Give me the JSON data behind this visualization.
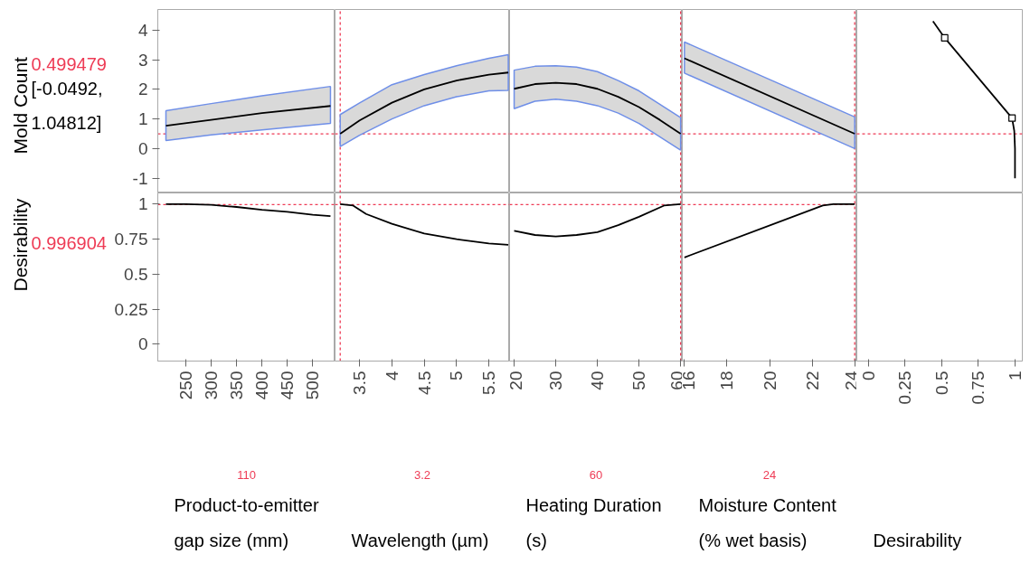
{
  "chart_data": [
    {
      "type": "line",
      "ylabel": "Mold Count",
      "annotations": [
        "[-0.0492, 1.04812]"
      ],
      "xlim": [
        195,
        544
      ],
      "xticks": [
        250,
        300,
        350,
        400,
        450,
        500
      ],
      "ylim": [
        -1.5,
        4.7
      ],
      "yticks": [
        -1,
        0,
        1,
        2,
        3,
        4
      ],
      "tick_labels": "y",
      "series": [
        {
          "color": "#000000",
          "x": [
            211,
            300,
            400,
            535
          ],
          "values": [
            0.77,
            0.97,
            1.2,
            1.44
          ],
          "lower": [
            0.27,
            0.46,
            0.63,
            0.85
          ],
          "upper": [
            1.28,
            1.52,
            1.78,
            2.1
          ]
        }
      ],
      "ref_lines": [
        {
          "axis": "y",
          "value": 0.499479,
          "label": "0.499479",
          "color": "#ee3b55"
        }
      ]
    },
    {
      "type": "line",
      "xlim": [
        3.12,
        5.82
      ],
      "xticks": [
        3.5,
        4,
        4.5,
        5,
        5.5
      ],
      "ylim": [
        -1.5,
        4.7
      ],
      "yticks": [
        -1,
        0,
        1,
        2,
        3,
        4
      ],
      "tick_labels": false,
      "series": [
        {
          "color": "#000000",
          "x": [
            3.2,
            3.5,
            4,
            4.5,
            5,
            5.5,
            5.8
          ],
          "values": [
            0.5,
            0.95,
            1.55,
            2.0,
            2.3,
            2.5,
            2.57
          ],
          "lower": [
            0.07,
            0.45,
            1.0,
            1.45,
            1.75,
            1.95,
            1.97
          ],
          "upper": [
            1.15,
            1.54,
            2.16,
            2.5,
            2.8,
            3.05,
            3.17
          ]
        }
      ],
      "ref_lines": [
        {
          "axis": "y",
          "value": 0.499479,
          "color": "#ee3b55"
        },
        {
          "axis": "x",
          "value": 3.2,
          "color": "#ee3b55"
        }
      ]
    },
    {
      "type": "line",
      "xlim": [
        18.9,
        60.4
      ],
      "xticks": [
        20,
        30,
        40,
        50,
        60
      ],
      "ylim": [
        -1.5,
        4.7
      ],
      "yticks": [
        -1,
        0,
        1,
        2,
        3,
        4
      ],
      "tick_labels": false,
      "series": [
        {
          "color": "#000000",
          "x": [
            20,
            25,
            30,
            35,
            40,
            45,
            50,
            55,
            60
          ],
          "values": [
            2.02,
            2.18,
            2.22,
            2.18,
            2.02,
            1.75,
            1.4,
            0.97,
            0.5
          ],
          "lower": [
            1.35,
            1.6,
            1.67,
            1.6,
            1.45,
            1.2,
            0.85,
            0.4,
            -0.05
          ],
          "upper": [
            2.65,
            2.78,
            2.8,
            2.75,
            2.6,
            2.3,
            1.95,
            1.5,
            1.05
          ]
        }
      ],
      "ref_lines": [
        {
          "axis": "y",
          "value": 0.499479,
          "color": "#ee3b55"
        },
        {
          "axis": "x",
          "value": 60,
          "color": "#ee3b55"
        }
      ]
    },
    {
      "type": "line",
      "xlim": [
        15.9,
        24.1
      ],
      "xticks": [
        16,
        18,
        20,
        22,
        24
      ],
      "ylim": [
        -1.5,
        4.7
      ],
      "yticks": [
        -1,
        0,
        1,
        2,
        3,
        4
      ],
      "tick_labels": false,
      "series": [
        {
          "color": "#000000",
          "x": [
            16,
            24
          ],
          "values": [
            3.05,
            0.5
          ],
          "lower": [
            2.55,
            0.0
          ],
          "upper": [
            3.6,
            1.07
          ]
        }
      ],
      "ref_lines": [
        {
          "axis": "y",
          "value": 0.499479,
          "color": "#ee3b55"
        },
        {
          "axis": "x",
          "value": 24,
          "color": "#ee3b55"
        }
      ]
    },
    {
      "type": "line",
      "xlim": [
        -0.08,
        1.05
      ],
      "xticks": [
        0,
        0.25,
        0.5,
        0.75,
        1
      ],
      "ylim": [
        -1.5,
        4.7
      ],
      "yticks": [
        -1,
        0,
        1,
        2,
        3,
        4
      ],
      "tick_labels": false,
      "series": [
        {
          "color": "#000000",
          "x": [
            0.44,
            0.52,
            0.98,
            0.995,
            1.0,
            1.0
          ],
          "values": [
            4.3,
            3.74,
            1.03,
            0.6,
            0.0,
            -1.0
          ]
        },
        {
          "type": "scatter",
          "marker": "square",
          "color": "#000000",
          "x": [
            0.52,
            0.98
          ],
          "values": [
            3.74,
            1.03
          ]
        }
      ],
      "ref_lines": [
        {
          "axis": "y",
          "value": 0.499479,
          "color": "#ee3b55"
        }
      ]
    },
    {
      "type": "line",
      "ylabel": "Desirability",
      "xlabel": "Product-to-emitter gap size (mm)",
      "annotations": [
        "110"
      ],
      "xlim": [
        195,
        544
      ],
      "xticks": [
        250,
        300,
        350,
        400,
        450,
        500
      ],
      "ylim": [
        -0.12,
        1.08
      ],
      "yticks": [
        0,
        0.25,
        0.5,
        0.75,
        1
      ],
      "series": [
        {
          "color": "#000000",
          "x": [
            211,
            250,
            300,
            350,
            400,
            450,
            500,
            535
          ],
          "values": [
            1.0,
            1.0,
            0.995,
            0.98,
            0.96,
            0.945,
            0.925,
            0.915
          ]
        }
      ],
      "ref_lines": [
        {
          "axis": "y",
          "value": 0.996904,
          "label": "0.996904",
          "color": "#ee3b55"
        }
      ]
    },
    {
      "type": "line",
      "xlabel": "Wavelength (µm)",
      "xlim": [
        3.12,
        5.82
      ],
      "xticks": [
        3.5,
        4,
        4.5,
        5,
        5.5
      ],
      "ylim": [
        -0.12,
        1.08
      ],
      "yticks": [
        0,
        0.25,
        0.5,
        0.75,
        1
      ],
      "tick_labels": "x",
      "series": [
        {
          "color": "#000000",
          "x": [
            3.2,
            3.4,
            3.6,
            4,
            4.5,
            5,
            5.5,
            5.8
          ],
          "values": [
            1.0,
            0.99,
            0.93,
            0.86,
            0.79,
            0.75,
            0.72,
            0.71
          ]
        }
      ],
      "ref_lines": [
        {
          "axis": "y",
          "value": 0.996904,
          "color": "#ee3b55"
        },
        {
          "axis": "x",
          "value": 3.2,
          "label": "3.2",
          "color": "#ee3b55"
        }
      ]
    },
    {
      "type": "line",
      "xlabel": "Heating Duration (s)",
      "xlim": [
        18.9,
        60.4
      ],
      "xticks": [
        20,
        30,
        40,
        50,
        60
      ],
      "ylim": [
        -0.12,
        1.08
      ],
      "yticks": [
        0,
        0.25,
        0.5,
        0.75,
        1
      ],
      "tick_labels": "x",
      "series": [
        {
          "color": "#000000",
          "x": [
            20,
            25,
            30,
            35,
            40,
            45,
            50,
            56,
            60
          ],
          "values": [
            0.81,
            0.78,
            0.77,
            0.78,
            0.8,
            0.85,
            0.91,
            0.99,
            1.0
          ]
        }
      ],
      "ref_lines": [
        {
          "axis": "y",
          "value": 0.996904,
          "color": "#ee3b55"
        },
        {
          "axis": "x",
          "value": 60,
          "label": "60",
          "color": "#ee3b55"
        }
      ]
    },
    {
      "type": "line",
      "xlabel": "Moisture Content (% wet basis)",
      "xlim": [
        15.9,
        24.1
      ],
      "xticks": [
        16,
        18,
        20,
        22,
        24
      ],
      "ylim": [
        -0.12,
        1.08
      ],
      "yticks": [
        0,
        0.25,
        0.5,
        0.75,
        1
      ],
      "tick_labels": "x",
      "series": [
        {
          "color": "#000000",
          "x": [
            16,
            22.5,
            23,
            24
          ],
          "values": [
            0.62,
            0.99,
            1.0,
            1.0
          ]
        }
      ],
      "ref_lines": [
        {
          "axis": "y",
          "value": 0.996904,
          "color": "#ee3b55"
        },
        {
          "axis": "x",
          "value": 24,
          "label": "24",
          "color": "#ee3b55"
        }
      ]
    },
    {
      "type": "line",
      "xlabel": "Desirability",
      "xlim": [
        -0.08,
        1.05
      ],
      "xticks": [
        0,
        0.25,
        0.5,
        0.75,
        1
      ],
      "ylim": [
        -0.12,
        1.08
      ],
      "yticks": [
        0,
        0.25,
        0.5,
        0.75,
        1
      ],
      "tick_labels": "x"
    }
  ]
}
